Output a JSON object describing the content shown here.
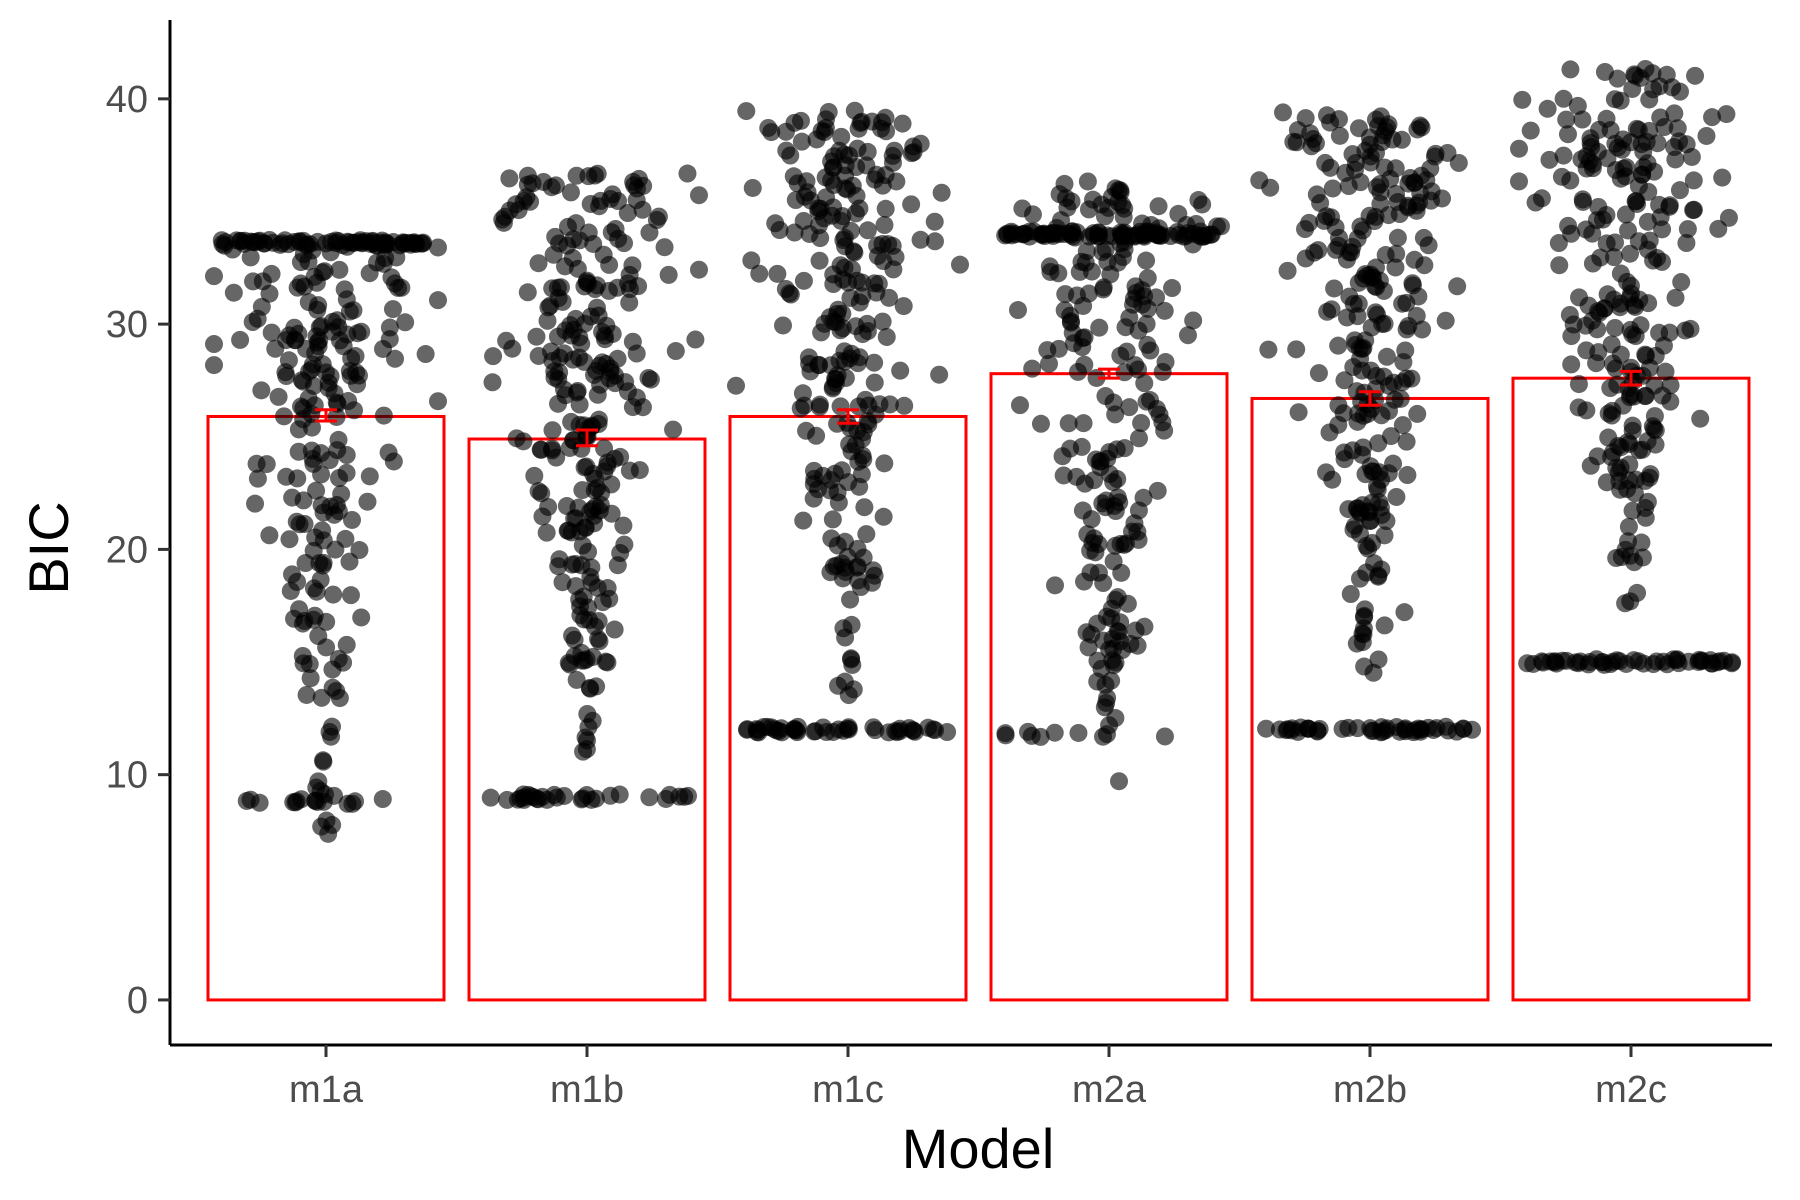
{
  "chart_data": {
    "type": "bar",
    "xlabel": "Model",
    "ylabel": "BIC",
    "categories": [
      "m1a",
      "m1b",
      "m1c",
      "m2a",
      "m2b",
      "m2c"
    ],
    "values": [
      25.9,
      24.9,
      25.9,
      27.8,
      26.7,
      27.6
    ],
    "error_bars": [
      {
        "low": 25.7,
        "high": 26.2
      },
      {
        "low": 24.6,
        "high": 25.3
      },
      {
        "low": 25.6,
        "high": 26.2
      },
      {
        "low": 27.6,
        "high": 28.0
      },
      {
        "low": 26.4,
        "high": 27.0
      },
      {
        "low": 27.3,
        "high": 27.9
      }
    ],
    "yticks": [
      0,
      10,
      20,
      30,
      40
    ],
    "ylim": [
      -2,
      43.5
    ],
    "grid": false,
    "legend": "none",
    "points": {
      "description_per_category": [
        {
          "min": 6.0,
          "max": 33.8,
          "clusters": [
            {
              "y": 33.6,
              "share": 0.22
            },
            {
              "y": 8.8,
              "share": 0.05
            }
          ]
        },
        {
          "min": 9.0,
          "max": 36.7,
          "clusters": [
            {
              "y": 9.0,
              "share": 0.1
            }
          ]
        },
        {
          "min": 12.0,
          "max": 39.5,
          "clusters": [
            {
              "y": 12.0,
              "share": 0.15
            }
          ]
        },
        {
          "min": 9.0,
          "max": 36.6,
          "clusters": [
            {
              "y": 34.0,
              "share": 0.25
            },
            {
              "y": 11.8,
              "share": 0.03
            }
          ]
        },
        {
          "min": 12.0,
          "max": 39.4,
          "clusters": [
            {
              "y": 12.0,
              "share": 0.15
            }
          ]
        },
        {
          "min": 15.0,
          "max": 41.4,
          "clusters": [
            {
              "y": 15.0,
              "share": 0.16
            }
          ]
        }
      ],
      "count_per_category": 300
    },
    "colors": {
      "bar_outline": "#ff0000",
      "error_bar": "#ff0000",
      "point": "#000000",
      "axis": "#000000"
    }
  }
}
